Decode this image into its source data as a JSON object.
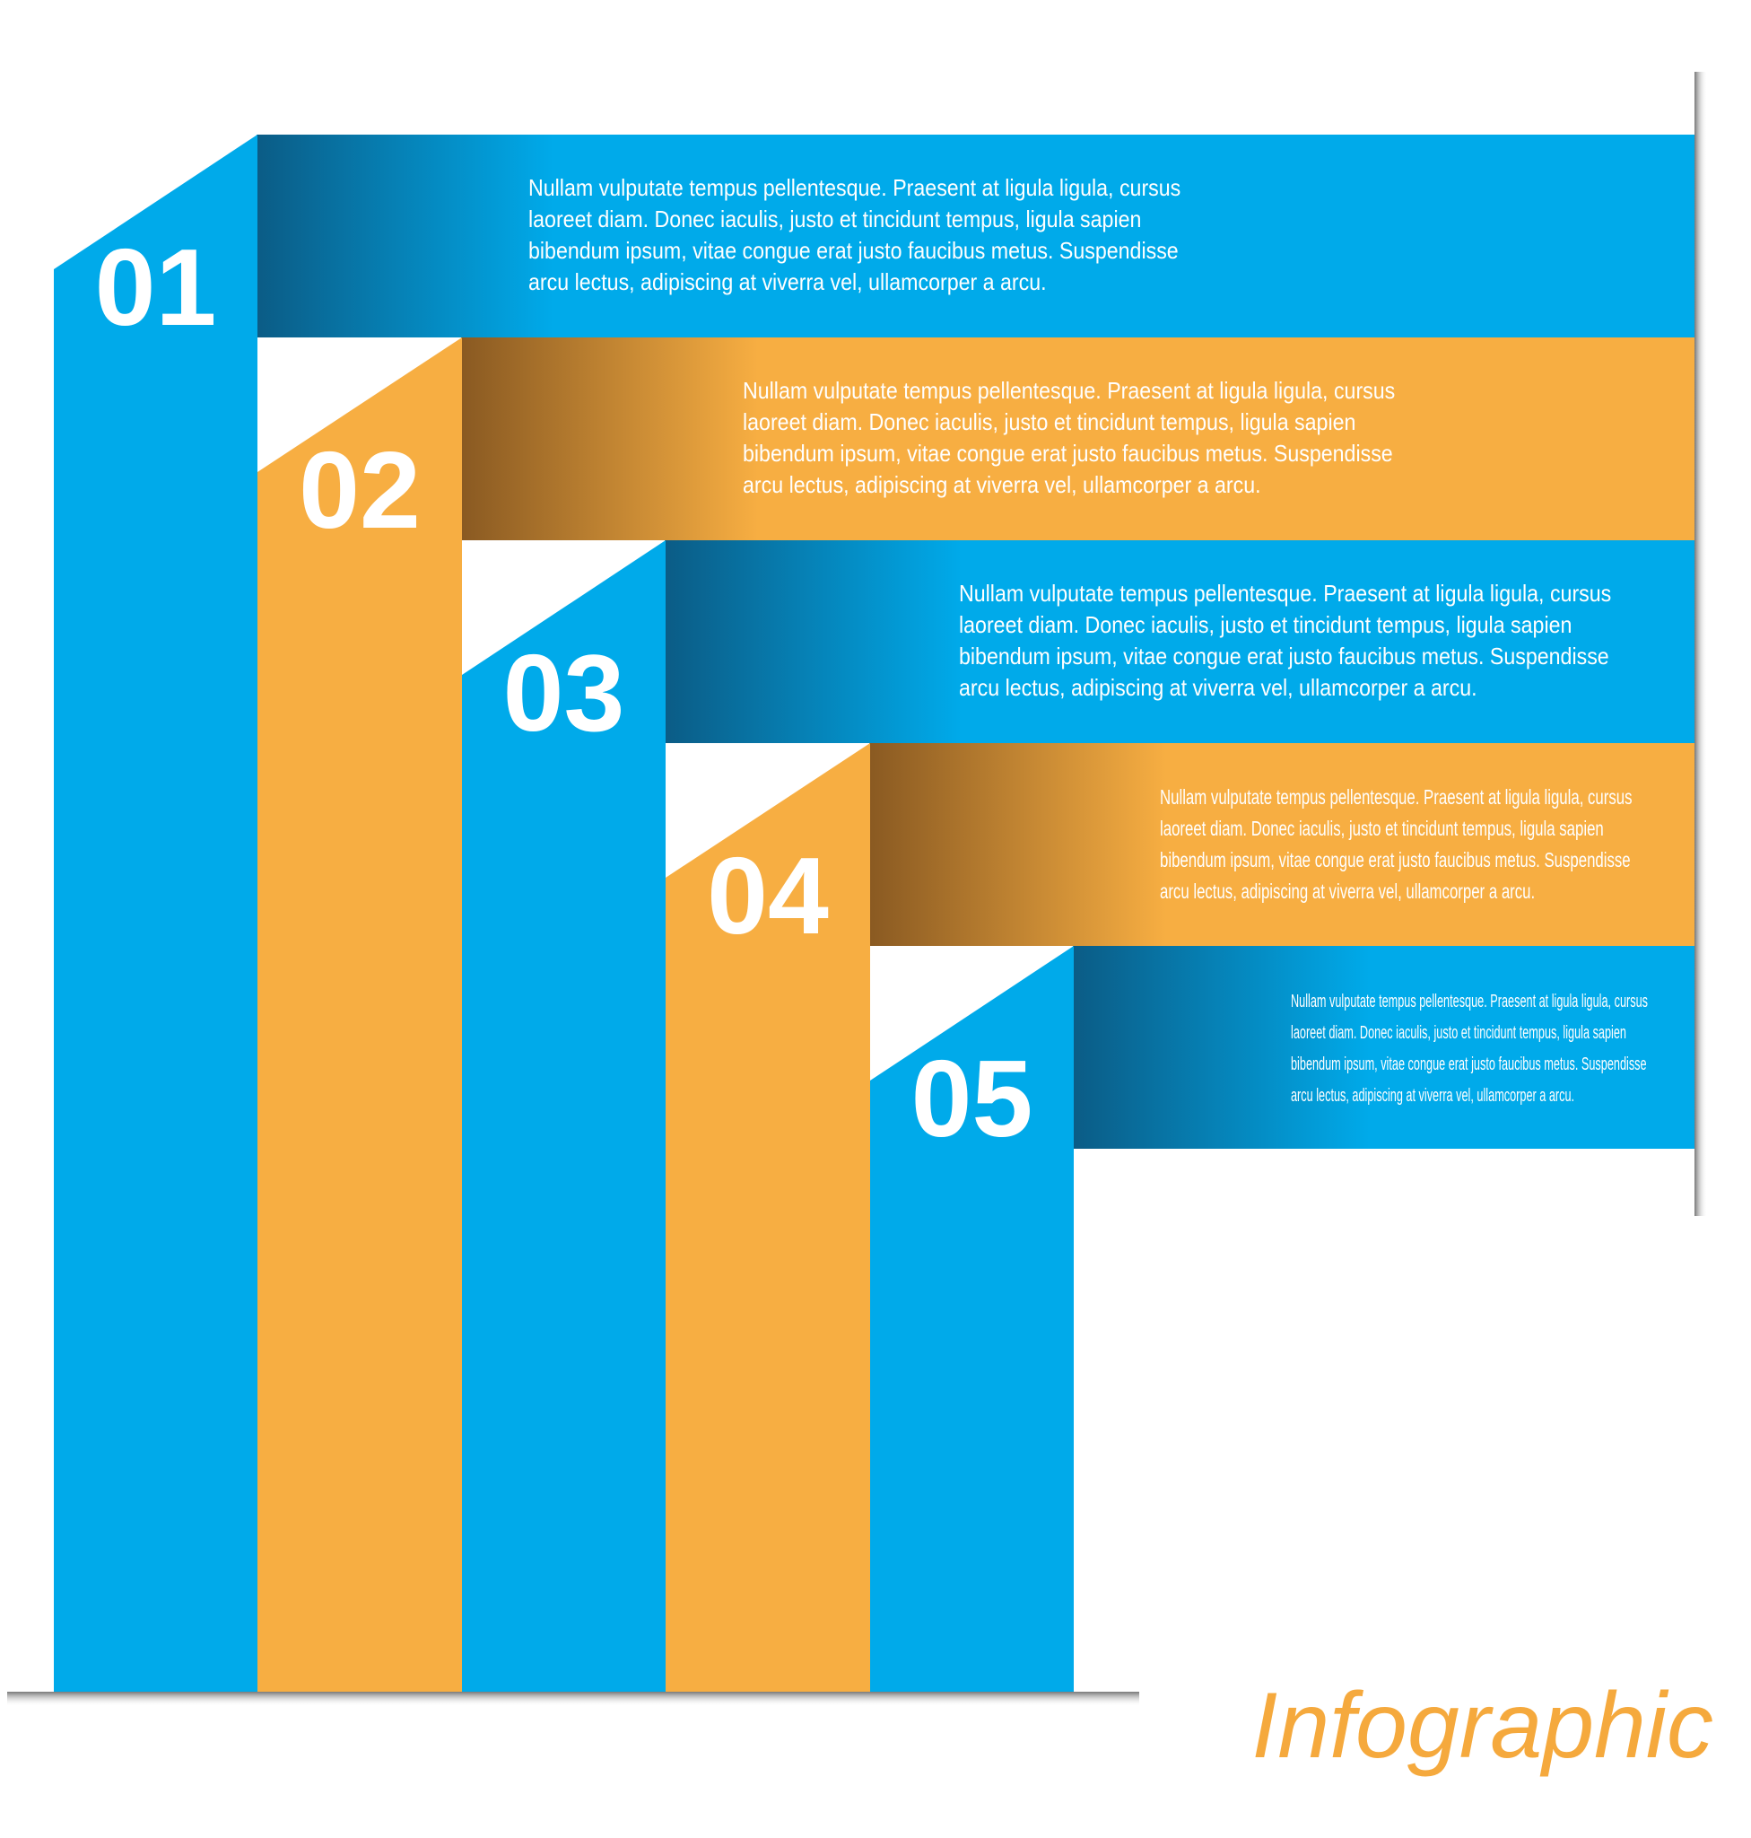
{
  "steps": [
    {
      "number": "01",
      "lines": [
        "Nullam vulputate tempus pellentesque. Praesent at ligula ligula, cursus",
        "laoreet diam. Donec iaculis, justo et tincidunt tempus, ligula sapien",
        "bibendum ipsum, vitae congue erat justo faucibus metus. Suspendisse",
        "arcu lectus, adipiscing at viverra vel, ullamcorper a arcu."
      ]
    },
    {
      "number": "02",
      "lines": [
        "Nullam vulputate tempus pellentesque. Praesent at ligula ligula, cursus",
        "laoreet diam. Donec iaculis, justo et tincidunt tempus, ligula sapien",
        "bibendum ipsum, vitae congue erat justo faucibus metus. Suspendisse",
        "arcu lectus, adipiscing at viverra vel, ullamcorper a arcu."
      ]
    },
    {
      "number": "03",
      "lines": [
        "Nullam vulputate tempus pellentesque. Praesent at ligula ligula, cursus",
        "laoreet diam. Donec iaculis, justo et tincidunt tempus, ligula sapien",
        "bibendum ipsum, vitae congue erat justo faucibus metus. Suspendisse",
        "arcu lectus, adipiscing at viverra vel, ullamcorper a arcu."
      ]
    },
    {
      "number": "04",
      "lines": [
        "Nullam vulputate tempus pellentesque. Praesent at ligula ligula, cursus",
        "laoreet diam. Donec iaculis, justo et tincidunt tempus, ligula sapien",
        "bibendum ipsum, vitae congue erat justo faucibus metus. Suspendisse",
        "arcu lectus, adipiscing at viverra vel, ullamcorper a arcu."
      ]
    },
    {
      "number": "05",
      "lines": [
        "Nullam vulputate tempus pellentesque. Praesent at ligula ligula, cursus",
        "laoreet diam. Donec iaculis, justo et tincidunt tempus, ligula sapien",
        "bibendum ipsum, vitae congue erat justo faucibus metus. Suspendisse",
        "arcu lectus, adipiscing at viverra vel, ullamcorper a arcu."
      ]
    }
  ],
  "title": "Infographic"
}
